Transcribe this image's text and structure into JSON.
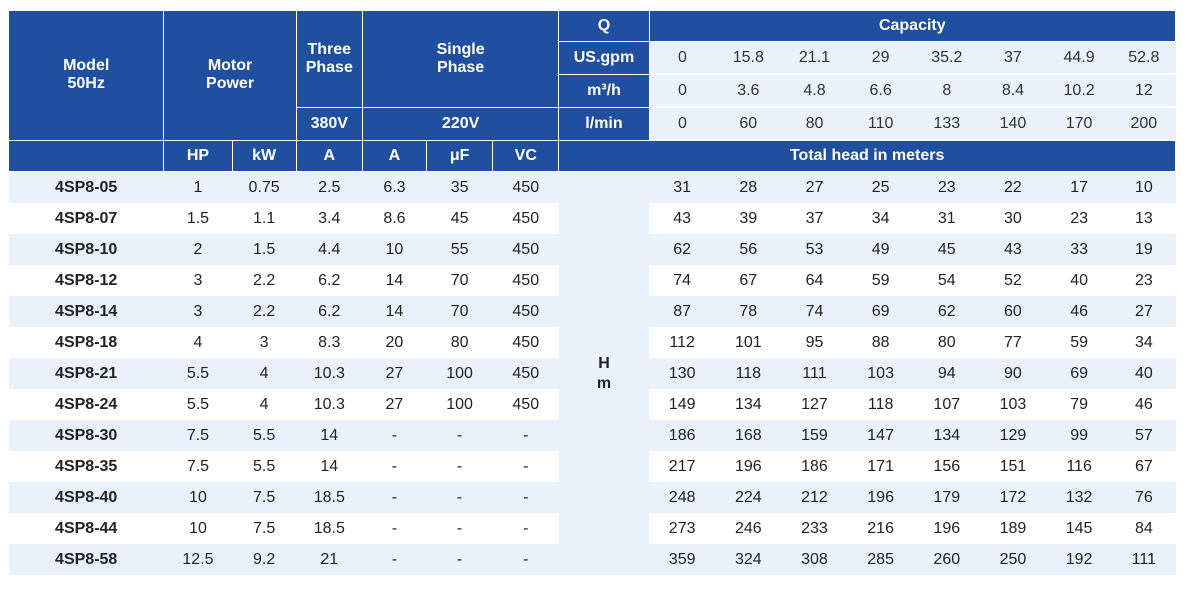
{
  "header": {
    "model_line1": "Model",
    "model_line2": "50Hz",
    "motor_line1": "Motor",
    "motor_line2": "Power",
    "three_line1": "Three",
    "three_line2": "Phase",
    "three_voltage": "380V",
    "single_line1": "Single",
    "single_line2": "Phase",
    "single_voltage": "220V",
    "q_label": "Q",
    "capacity_label": "Capacity",
    "total_head_label": "Total head in meters",
    "units": {
      "hp": "HP",
      "kw": "kW",
      "a3": "A",
      "a1": "A",
      "uf": "μF",
      "vc": "VC"
    }
  },
  "capacity": [
    {
      "unit": "US.gpm",
      "values": [
        "0",
        "15.8",
        "21.1",
        "29",
        "35.2",
        "37",
        "44.9",
        "52.8"
      ]
    },
    {
      "unit": "m³/h",
      "values": [
        "0",
        "3.6",
        "4.8",
        "6.6",
        "8",
        "8.4",
        "10.2",
        "12"
      ]
    },
    {
      "unit": "l/min",
      "values": [
        "0",
        "60",
        "80",
        "110",
        "133",
        "140",
        "170",
        "200"
      ]
    }
  ],
  "hm": {
    "line1": "H",
    "line2": "m"
  },
  "rows": [
    {
      "model": "4SP8-05",
      "hp": "1",
      "kw": "0.75",
      "a3": "2.5",
      "a1": "6.3",
      "uf": "35",
      "vc": "450",
      "heads": [
        "31",
        "28",
        "27",
        "25",
        "23",
        "22",
        "17",
        "10"
      ]
    },
    {
      "model": "4SP8-07",
      "hp": "1.5",
      "kw": "1.1",
      "a3": "3.4",
      "a1": "8.6",
      "uf": "45",
      "vc": "450",
      "heads": [
        "43",
        "39",
        "37",
        "34",
        "31",
        "30",
        "23",
        "13"
      ]
    },
    {
      "model": "4SP8-10",
      "hp": "2",
      "kw": "1.5",
      "a3": "4.4",
      "a1": "10",
      "uf": "55",
      "vc": "450",
      "heads": [
        "62",
        "56",
        "53",
        "49",
        "45",
        "43",
        "33",
        "19"
      ]
    },
    {
      "model": "4SP8-12",
      "hp": "3",
      "kw": "2.2",
      "a3": "6.2",
      "a1": "14",
      "uf": "70",
      "vc": "450",
      "heads": [
        "74",
        "67",
        "64",
        "59",
        "54",
        "52",
        "40",
        "23"
      ]
    },
    {
      "model": "4SP8-14",
      "hp": "3",
      "kw": "2.2",
      "a3": "6.2",
      "a1": "14",
      "uf": "70",
      "vc": "450",
      "heads": [
        "87",
        "78",
        "74",
        "69",
        "62",
        "60",
        "46",
        "27"
      ]
    },
    {
      "model": "4SP8-18",
      "hp": "4",
      "kw": "3",
      "a3": "8.3",
      "a1": "20",
      "uf": "80",
      "vc": "450",
      "heads": [
        "112",
        "101",
        "95",
        "88",
        "80",
        "77",
        "59",
        "34"
      ]
    },
    {
      "model": "4SP8-21",
      "hp": "5.5",
      "kw": "4",
      "a3": "10.3",
      "a1": "27",
      "uf": "100",
      "vc": "450",
      "heads": [
        "130",
        "118",
        "111",
        "103",
        "94",
        "90",
        "69",
        "40"
      ]
    },
    {
      "model": "4SP8-24",
      "hp": "5.5",
      "kw": "4",
      "a3": "10.3",
      "a1": "27",
      "uf": "100",
      "vc": "450",
      "heads": [
        "149",
        "134",
        "127",
        "118",
        "107",
        "103",
        "79",
        "46"
      ]
    },
    {
      "model": "4SP8-30",
      "hp": "7.5",
      "kw": "5.5",
      "a3": "14",
      "a1": "-",
      "uf": "-",
      "vc": "-",
      "heads": [
        "186",
        "168",
        "159",
        "147",
        "134",
        "129",
        "99",
        "57"
      ]
    },
    {
      "model": "4SP8-35",
      "hp": "7.5",
      "kw": "5.5",
      "a3": "14",
      "a1": "-",
      "uf": "-",
      "vc": "-",
      "heads": [
        "217",
        "196",
        "186",
        "171",
        "156",
        "151",
        "116",
        "67"
      ]
    },
    {
      "model": "4SP8-40",
      "hp": "10",
      "kw": "7.5",
      "a3": "18.5",
      "a1": "-",
      "uf": "-",
      "vc": "-",
      "heads": [
        "248",
        "224",
        "212",
        "196",
        "179",
        "172",
        "132",
        "76"
      ]
    },
    {
      "model": "4SP8-44",
      "hp": "10",
      "kw": "7.5",
      "a3": "18.5",
      "a1": "-",
      "uf": "-",
      "vc": "-",
      "heads": [
        "273",
        "246",
        "233",
        "216",
        "196",
        "189",
        "145",
        "84"
      ]
    },
    {
      "model": "4SP8-58",
      "hp": "12.5",
      "kw": "9.2",
      "a3": "21",
      "a1": "-",
      "uf": "-",
      "vc": "-",
      "heads": [
        "359",
        "324",
        "308",
        "285",
        "260",
        "250",
        "192",
        "111"
      ]
    }
  ]
}
